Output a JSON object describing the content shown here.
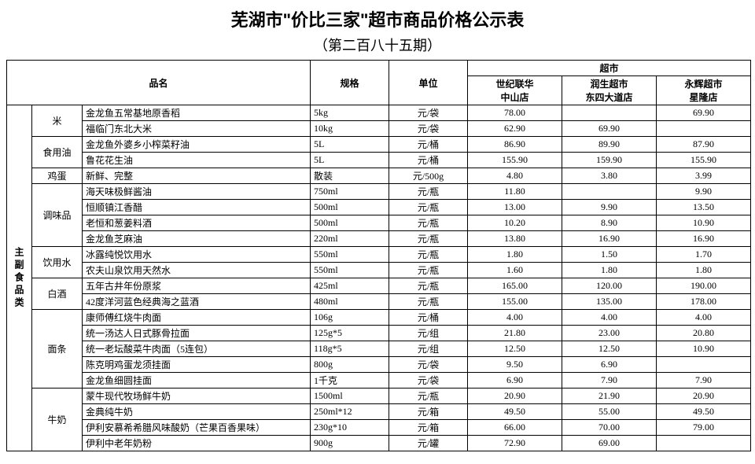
{
  "title": "芜湖市\"价比三家\"超市商品价格公示表",
  "subtitle": "（第二百八十五期）",
  "headers": {
    "name": "品名",
    "spec": "规格",
    "unit": "单位",
    "market_group": "超市",
    "markets": [
      "世纪联华\n中山店",
      "润生超市\n东四大道店",
      "永辉超市\n星隆店"
    ]
  },
  "vcat": "主副食品类",
  "groups": [
    {
      "label": "米",
      "rows": [
        {
          "item": "金龙鱼五常基地原香稻",
          "spec": "5kg",
          "unit": "元/袋",
          "p": [
            "78.00",
            "",
            "69.90"
          ]
        },
        {
          "item": "福临门东北大米",
          "spec": "10kg",
          "unit": "元/袋",
          "p": [
            "62.90",
            "69.90",
            ""
          ]
        }
      ]
    },
    {
      "label": "食用油",
      "rows": [
        {
          "item": "金龙鱼外婆乡小榨菜籽油",
          "spec": "5L",
          "unit": "元/桶",
          "p": [
            "86.90",
            "89.90",
            "87.90"
          ]
        },
        {
          "item": "鲁花花生油",
          "spec": "5L",
          "unit": "元/桶",
          "p": [
            "155.90",
            "159.90",
            "155.90"
          ]
        }
      ]
    },
    {
      "label": "鸡蛋",
      "rows": [
        {
          "item": "新鲜、完整",
          "spec": "散装",
          "unit": "元/500g",
          "p": [
            "4.80",
            "3.80",
            "3.99"
          ]
        }
      ]
    },
    {
      "label": "调味品",
      "rows": [
        {
          "item": "海天味极鲜酱油",
          "spec": "750ml",
          "unit": "元/瓶",
          "p": [
            "11.80",
            "",
            "9.90"
          ]
        },
        {
          "item": "恒顺镇江香醋",
          "spec": "500ml",
          "unit": "元/瓶",
          "p": [
            "13.00",
            "9.90",
            "13.50"
          ]
        },
        {
          "item": "老恒和葱姜料酒",
          "spec": "500ml",
          "unit": "元/瓶",
          "p": [
            "10.20",
            "8.90",
            "10.90"
          ]
        },
        {
          "item": "金龙鱼芝麻油",
          "spec": "220ml",
          "unit": "元/瓶",
          "p": [
            "13.80",
            "16.90",
            "16.90"
          ]
        }
      ]
    },
    {
      "label": "饮用水",
      "rows": [
        {
          "item": "冰露纯悦饮用水",
          "spec": "550ml",
          "unit": "元/瓶",
          "p": [
            "1.80",
            "1.50",
            "1.70"
          ]
        },
        {
          "item": "农夫山泉饮用天然水",
          "spec": "550ml",
          "unit": "元/瓶",
          "p": [
            "1.60",
            "1.80",
            "1.80"
          ]
        }
      ]
    },
    {
      "label": "白酒",
      "rows": [
        {
          "item": "五年古井年份原浆",
          "spec": "425ml",
          "unit": "元/瓶",
          "p": [
            "165.00",
            "120.00",
            "190.00"
          ]
        },
        {
          "item": "42度洋河蓝色经典海之蓝酒",
          "spec": "480ml",
          "unit": "元/瓶",
          "p": [
            "155.00",
            "135.00",
            "178.00"
          ]
        }
      ]
    },
    {
      "label": "面条",
      "rows": [
        {
          "item": "康师傅红烧牛肉面",
          "spec": "106g",
          "unit": "元/桶",
          "p": [
            "4.00",
            "4.00",
            "4.00"
          ]
        },
        {
          "item": "统一汤达人日式豚骨拉面",
          "spec": "125g*5",
          "unit": "元/组",
          "p": [
            "21.80",
            "23.00",
            "20.80"
          ]
        },
        {
          "item": "统一老坛酸菜牛肉面（5连包）",
          "spec": "118g*5",
          "unit": "元/组",
          "p": [
            "12.50",
            "12.50",
            "10.90"
          ]
        },
        {
          "item": "陈克明鸡蛋龙须挂面",
          "spec": "800g",
          "unit": "元/袋",
          "p": [
            "9.50",
            "6.90",
            ""
          ]
        },
        {
          "item": "金龙鱼细圆挂面",
          "spec": "1千克",
          "unit": "元/袋",
          "p": [
            "6.90",
            "7.90",
            "7.90"
          ]
        }
      ]
    },
    {
      "label": "牛奶",
      "rows": [
        {
          "item": "蒙牛现代牧场鲜牛奶",
          "spec": "1500ml",
          "unit": "元/瓶",
          "p": [
            "20.90",
            "21.90",
            "20.90"
          ]
        },
        {
          "item": "金典纯牛奶",
          "spec": "250ml*12",
          "unit": "元/箱",
          "p": [
            "49.50",
            "55.00",
            "49.50"
          ]
        },
        {
          "item": "伊利安慕希希腊风味酸奶（芒果百香果味）",
          "spec": "230g*10",
          "unit": "元/箱",
          "p": [
            "66.00",
            "70.00",
            "79.00"
          ]
        },
        {
          "item": "伊利中老年奶粉",
          "spec": "900g",
          "unit": "元/罐",
          "p": [
            "72.90",
            "69.00",
            ""
          ]
        }
      ]
    }
  ],
  "col_widths": {
    "vcat": 32,
    "subcat": 64,
    "item": 290,
    "spec": 100,
    "unit": 100,
    "price": 120
  }
}
